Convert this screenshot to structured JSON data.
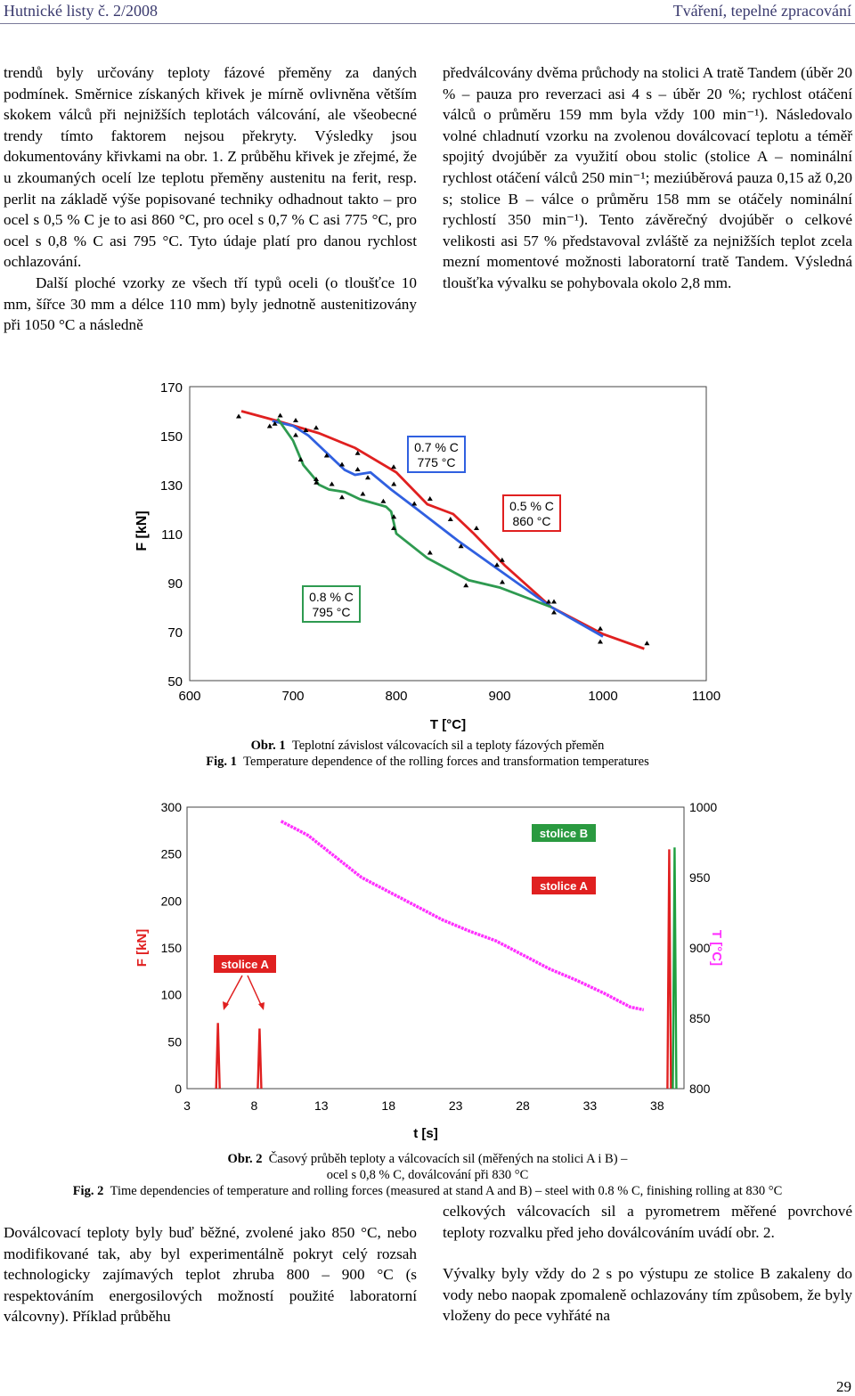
{
  "header": {
    "left": "Hutnické listy č. 2/2008",
    "right": "Tváření, tepelné zpracování"
  },
  "left_col": {
    "p1": "trendů byly určovány teploty fázové přeměny za daných podmínek. Směrnice získaných křivek je mírně ovlivněna větším skokem válců při nejnižších teplotách válcování, ale všeobecné trendy tímto faktorem nejsou překryty. Výsledky jsou dokumentovány křivkami na obr. 1. Z průběhu křivek je zřejmé, že u zkoumaných ocelí lze teplotu přeměny austenitu na ferit, resp. perlit na základě výše popisované techniky odhadnout takto – pro ocel s 0,5 % C je to asi 860 °C, pro ocel s 0,7 % C asi 775 °C, pro ocel s 0,8 % C asi 795 °C. Tyto údaje platí pro danou rychlost ochlazování.",
    "p2": "Další ploché vzorky ze všech tří typů oceli (o tloušťce 10 mm, šířce 30 mm a délce 110 mm) byly jednotně austenitizovány při 1050 °C a následně"
  },
  "right_col": {
    "p1": "předválcovány dvěma průchody na stolici A tratě Tandem (úběr 20 % – pauza pro reverzaci asi 4 s – úběr 20 %; rychlost otáčení válců o průměru 159 mm byla vždy 100 min⁻¹). Následovalo volné chladnutí vzorku na zvolenou doválcovací teplotu a téměř spojitý dvojúběr za využití obou stolic (stolice A – nominální rychlost otáčení válců 250 min⁻¹; meziúběrová pauza 0,15 až 0,20 s; stolice B – válce o průměru 158 mm se otáčely nominální rychlostí 350 min⁻¹). Tento závěrečný dvojúběr o celkové velikosti asi 57 % představoval zvláště za nejnižších teplot zcela mezní momentové možnosti laboratorní tratě Tandem. Výsledná tloušťka vývalku se pohybovala okolo 2,8 mm."
  },
  "bottom_left": {
    "p1": "Doválcovací teploty byly buď běžné, zvolené jako 850 °C, nebo modifikované tak, aby byl experimentálně pokryt celý rozsah technologicky zajímavých teplot zhruba 800 – 900 °C (s respektováním energosilových možností použité laboratorní válcovny). Příklad průběhu"
  },
  "bottom_right": {
    "p1": "celkových válcovacích sil a pyrometrem měřené povrchové teploty rozvalku před jeho doválcováním uvádí obr. 2.",
    "p2": "Vývalky byly vždy do 2 s po výstupu ze stolice B zakaleny do vody nebo naopak zpomaleně ochlazovány tím způsobem, že byly vloženy do pece vyhřáté na"
  },
  "fig1_caption": {
    "cz_label": "Obr. 1",
    "cz_text": "Teplotní závislost válcovacích sil a teploty fázových přeměn",
    "en_label": "Fig. 1",
    "en_text": "Temperature dependence of the rolling forces and transformation temperatures"
  },
  "fig2_caption": {
    "cz_label": "Obr. 2",
    "cz_text": "Časový průběh teploty a válcovacích sil (měřených na stolici A i B) –",
    "cz_text2": "ocel s 0,8 % C, doválcování při 830 °C",
    "en_label": "Fig. 2",
    "en_text": "Time dependencies of temperature and rolling forces (measured at stand A and B) – steel with 0.8 % C, finishing rolling at 830 °C"
  },
  "page_number": "29",
  "chart_data": [
    {
      "type": "scatter",
      "xlabel": "T [°C]",
      "ylabel": "F [kN]",
      "xlim": [
        600,
        1100
      ],
      "ylim": [
        50,
        170
      ],
      "xticks": [
        "600",
        "700",
        "800",
        "900",
        "1000",
        "1100"
      ],
      "yticks": [
        "50",
        "70",
        "90",
        "110",
        "130",
        "150",
        "170"
      ],
      "grid": false,
      "annotations": [
        {
          "line1": "0.7 % C",
          "line2": "775 °C",
          "color": "#3060e0"
        },
        {
          "line1": "0.5 % C",
          "line2": "860 °C",
          "color": "#e02020"
        },
        {
          "line1": "0.8 % C",
          "line2": "795 °C",
          "color": "#2e9a50"
        }
      ],
      "series": [
        {
          "color": "#e02020",
          "x": [
            650,
            685,
            725,
            760,
            800,
            830,
            855,
            875,
            905,
            950,
            1000,
            1040
          ],
          "y": [
            160,
            156,
            151,
            145,
            135,
            122,
            118,
            110,
            97,
            80,
            69,
            63
          ]
        },
        {
          "color": "#3060e0",
          "x": [
            680,
            700,
            715,
            730,
            750,
            760,
            775,
            795,
            820,
            860,
            900,
            950,
            1000
          ],
          "y": [
            156,
            154,
            150,
            144,
            136,
            134,
            135,
            128,
            120,
            107,
            95,
            80,
            68
          ]
        },
        {
          "color": "#2e9a50",
          "x": [
            685,
            700,
            710,
            720,
            725,
            735,
            750,
            765,
            790,
            795,
            800,
            830,
            870,
            900,
            950
          ],
          "y": [
            157,
            148,
            138,
            133,
            130,
            128,
            127,
            124,
            121,
            119,
            110,
            100,
            91,
            88,
            80
          ]
        }
      ]
    },
    {
      "type": "line",
      "xlabel": "t [s]",
      "ylabel_left": "F [kN]",
      "ylabel_right": "T [°C]",
      "xlim": [
        3,
        40
      ],
      "ylim_left": [
        0,
        300
      ],
      "ylim_right": [
        800,
        1000
      ],
      "xticks": [
        "3",
        "8",
        "13",
        "18",
        "23",
        "28",
        "33",
        "38"
      ],
      "yticks_left": [
        "0",
        "50",
        "100",
        "150",
        "200",
        "250",
        "300"
      ],
      "yticks_right": [
        "800",
        "850",
        "900",
        "950",
        "1000"
      ],
      "labels": {
        "stolice_B": "stolice B",
        "stolice_A_right": "stolice A",
        "stolice_A_left": "stolice A"
      },
      "temperature": {
        "t": [
          10,
          12,
          14,
          16,
          18,
          20,
          22,
          24,
          26,
          28,
          30,
          32,
          34,
          36,
          37
        ],
        "T": [
          990,
          980,
          965,
          950,
          940,
          930,
          920,
          912,
          905,
          895,
          885,
          877,
          868,
          858,
          856
        ]
      },
      "force_peaks": [
        {
          "t": 5.3,
          "F": 70,
          "color": "#e02020"
        },
        {
          "t": 8.4,
          "F": 64,
          "color": "#e02020"
        },
        {
          "t": 38.9,
          "F": 255,
          "color": "#e02020"
        },
        {
          "t": 39.3,
          "F": 257,
          "color": "#20a040"
        }
      ]
    }
  ]
}
